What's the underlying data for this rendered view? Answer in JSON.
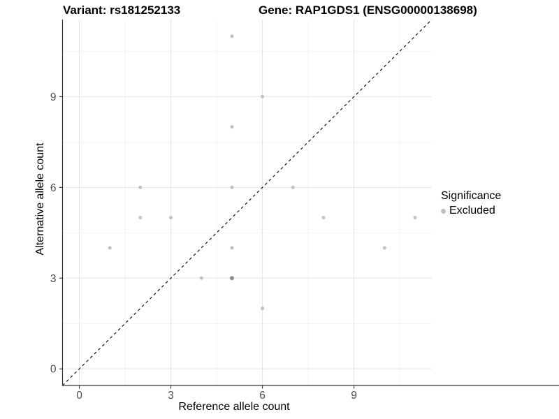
{
  "chart_data": {
    "type": "scatter",
    "title_variant": "Variant: rs181252133",
    "title_gene": "Gene: RAP1GDS1 (ENSG00000138698)",
    "xlabel": "Reference allele count",
    "ylabel": "Alternative allele count",
    "xlim": [
      -0.55,
      11.55
    ],
    "ylim": [
      -0.55,
      11.55
    ],
    "x_ticks": [
      0,
      3,
      6,
      9
    ],
    "y_ticks": [
      0,
      3,
      6,
      9
    ],
    "x_minor_ticks": [
      1.5,
      4.5,
      7.5,
      10.5
    ],
    "y_minor_ticks": [
      1.5,
      4.5,
      7.5,
      10.5
    ],
    "grid": true,
    "identity_line": {
      "type": "dashed",
      "color": "#000000",
      "from": -0.55,
      "to": 11.55
    },
    "points": [
      {
        "x": 5,
        "y": 11
      },
      {
        "x": 6,
        "y": 9
      },
      {
        "x": 5,
        "y": 8
      },
      {
        "x": 2,
        "y": 6
      },
      {
        "x": 5,
        "y": 6
      },
      {
        "x": 7,
        "y": 6
      },
      {
        "x": 2,
        "y": 5
      },
      {
        "x": 3,
        "y": 5
      },
      {
        "x": 8,
        "y": 5
      },
      {
        "x": 11,
        "y": 5
      },
      {
        "x": 1,
        "y": 4
      },
      {
        "x": 5,
        "y": 4
      },
      {
        "x": 10,
        "y": 4
      },
      {
        "x": 4,
        "y": 3
      },
      {
        "x": 5,
        "y": 3,
        "overlap": true
      },
      {
        "x": 6,
        "y": 2
      }
    ],
    "legend": {
      "title": "Significance",
      "position": "right",
      "items": [
        {
          "label": "Excluded",
          "color": "#bfbfbf"
        }
      ]
    },
    "colors": {
      "point": "#c1c1c1",
      "point_overlap": "#8c8c8c",
      "grid_major": "#e4e4e4",
      "grid_minor": "#f1f1f1",
      "axis_line": "#333333",
      "tick_label": "#4d4d4d",
      "identity_line": "#000000"
    }
  }
}
